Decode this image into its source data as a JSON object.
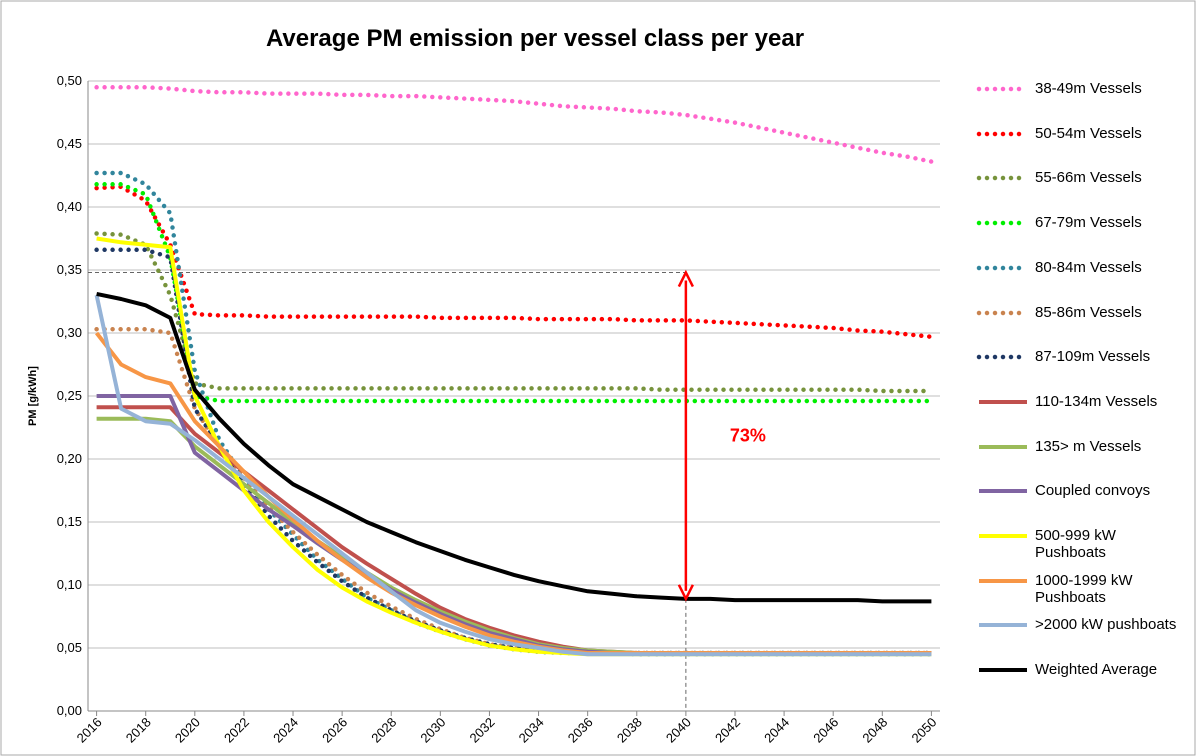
{
  "chart_data": {
    "type": "line",
    "title": "Average PM emission per vessel class per year",
    "y_label": "PM [g/kWh]",
    "xlim": [
      2015.65,
      2050.35
    ],
    "xticks": [
      2016,
      2018,
      2020,
      2022,
      2024,
      2026,
      2028,
      2030,
      2032,
      2034,
      2036,
      2038,
      2040,
      2042,
      2044,
      2046,
      2048,
      2050
    ],
    "ylim": [
      0,
      0.5
    ],
    "yticks": [
      {
        "value": 0,
        "label": "0,00"
      },
      {
        "value": 0.05,
        "label": "0,05"
      },
      {
        "value": 0.1,
        "label": "0,10"
      },
      {
        "value": 0.15,
        "label": "0,15"
      },
      {
        "value": 0.2,
        "label": "0,20"
      },
      {
        "value": 0.25,
        "label": "0,25"
      },
      {
        "value": 0.3,
        "label": "0,30"
      },
      {
        "value": 0.35,
        "label": "0,35"
      },
      {
        "value": 0.4,
        "label": "0,40"
      },
      {
        "value": 0.45,
        "label": "0,45"
      },
      {
        "value": 0.5,
        "label": "0,50"
      }
    ],
    "grid": true,
    "legend": "right",
    "x": [
      2016,
      2017,
      2018,
      2019,
      2020,
      2021,
      2022,
      2023,
      2024,
      2025,
      2026,
      2027,
      2028,
      2029,
      2030,
      2031,
      2032,
      2033,
      2034,
      2035,
      2036,
      2037,
      2038,
      2039,
      2040,
      2041,
      2042,
      2043,
      2044,
      2045,
      2046,
      2047,
      2048,
      2049,
      2050
    ],
    "series": [
      {
        "name": "38-49m Vessels",
        "color": "#ff66cc",
        "style": "dotted",
        "values": [
          0.495,
          0.495,
          0.495,
          0.494,
          0.492,
          0.491,
          0.491,
          0.49,
          0.49,
          0.49,
          0.489,
          0.489,
          0.488,
          0.488,
          0.487,
          0.486,
          0.485,
          0.484,
          0.482,
          0.48,
          0.479,
          0.478,
          0.476,
          0.475,
          0.473,
          0.47,
          0.467,
          0.463,
          0.459,
          0.455,
          0.451,
          0.447,
          0.443,
          0.44,
          0.436
        ]
      },
      {
        "name": "50-54m Vessels",
        "color": "#ff0000",
        "style": "dotted",
        "values": [
          0.415,
          0.416,
          0.405,
          0.37,
          0.315,
          0.314,
          0.314,
          0.313,
          0.313,
          0.313,
          0.313,
          0.313,
          0.313,
          0.313,
          0.312,
          0.312,
          0.312,
          0.312,
          0.311,
          0.311,
          0.311,
          0.311,
          0.31,
          0.31,
          0.31,
          0.309,
          0.308,
          0.307,
          0.306,
          0.305,
          0.304,
          0.302,
          0.301,
          0.299,
          0.297
        ]
      },
      {
        "name": "55-66m Vessels",
        "color": "#77933c",
        "style": "dotted",
        "values": [
          0.379,
          0.378,
          0.37,
          0.33,
          0.26,
          0.256,
          0.256,
          0.256,
          0.256,
          0.256,
          0.256,
          0.256,
          0.256,
          0.256,
          0.256,
          0.256,
          0.256,
          0.256,
          0.256,
          0.256,
          0.256,
          0.256,
          0.256,
          0.255,
          0.255,
          0.255,
          0.255,
          0.255,
          0.255,
          0.255,
          0.255,
          0.255,
          0.254,
          0.254,
          0.254
        ]
      },
      {
        "name": "67-79m Vessels",
        "color": "#00ee00",
        "style": "dotted",
        "values": [
          0.418,
          0.418,
          0.41,
          0.36,
          0.25,
          0.246,
          0.246,
          0.246,
          0.246,
          0.246,
          0.246,
          0.246,
          0.246,
          0.246,
          0.246,
          0.246,
          0.246,
          0.246,
          0.246,
          0.246,
          0.246,
          0.246,
          0.246,
          0.246,
          0.246,
          0.246,
          0.246,
          0.246,
          0.246,
          0.246,
          0.246,
          0.246,
          0.246,
          0.246,
          0.246
        ]
      },
      {
        "name": "80-84m Vessels",
        "color": "#31859c",
        "style": "dotted",
        "values": [
          0.427,
          0.427,
          0.418,
          0.395,
          0.27,
          0.215,
          0.185,
          0.16,
          0.14,
          0.12,
          0.105,
          0.09,
          0.08,
          0.07,
          0.063,
          0.057,
          0.052,
          0.049,
          0.047,
          0.046,
          0.046,
          0.046,
          0.045,
          0.045,
          0.045,
          0.045,
          0.045,
          0.045,
          0.045,
          0.045,
          0.045,
          0.045,
          0.045,
          0.045,
          0.045
        ]
      },
      {
        "name": "85-86m Vessels",
        "color": "#c9834f",
        "style": "dotted",
        "values": [
          0.303,
          0.303,
          0.303,
          0.3,
          0.24,
          0.21,
          0.185,
          0.162,
          0.142,
          0.124,
          0.108,
          0.094,
          0.083,
          0.073,
          0.065,
          0.058,
          0.053,
          0.05,
          0.048,
          0.047,
          0.046,
          0.046,
          0.046,
          0.046,
          0.046,
          0.046,
          0.046,
          0.046,
          0.046,
          0.046,
          0.046,
          0.046,
          0.046,
          0.046,
          0.046
        ]
      },
      {
        "name": "87-109m Vessels",
        "color": "#1f3864",
        "style": "dotted",
        "values": [
          0.366,
          0.366,
          0.366,
          0.36,
          0.24,
          0.21,
          0.18,
          0.155,
          0.135,
          0.118,
          0.103,
          0.09,
          0.08,
          0.071,
          0.064,
          0.058,
          0.053,
          0.05,
          0.048,
          0.047,
          0.046,
          0.046,
          0.046,
          0.046,
          0.046,
          0.046,
          0.046,
          0.046,
          0.046,
          0.046,
          0.046,
          0.046,
          0.046,
          0.046,
          0.046
        ]
      },
      {
        "name": "110-134m Vessels",
        "color": "#c0504d",
        "style": "solid",
        "values": [
          0.241,
          0.241,
          0.241,
          0.241,
          0.22,
          0.205,
          0.19,
          0.175,
          0.16,
          0.145,
          0.13,
          0.117,
          0.105,
          0.093,
          0.082,
          0.073,
          0.066,
          0.06,
          0.055,
          0.051,
          0.048,
          0.047,
          0.046,
          0.046,
          0.046,
          0.046,
          0.046,
          0.046,
          0.046,
          0.046,
          0.046,
          0.046,
          0.046,
          0.046,
          0.046
        ]
      },
      {
        "name": "135> m Vessels",
        "color": "#9bbb59",
        "style": "solid",
        "values": [
          0.232,
          0.232,
          0.232,
          0.23,
          0.21,
          0.195,
          0.18,
          0.165,
          0.15,
          0.135,
          0.122,
          0.11,
          0.098,
          0.088,
          0.079,
          0.071,
          0.064,
          0.058,
          0.053,
          0.05,
          0.048,
          0.047,
          0.046,
          0.046,
          0.046,
          0.046,
          0.046,
          0.046,
          0.046,
          0.046,
          0.046,
          0.046,
          0.046,
          0.046,
          0.046
        ]
      },
      {
        "name": "Coupled convoys",
        "color": "#8064a2",
        "style": "solid",
        "values": [
          0.25,
          0.25,
          0.25,
          0.25,
          0.205,
          0.19,
          0.175,
          0.16,
          0.147,
          0.133,
          0.12,
          0.108,
          0.096,
          0.086,
          0.077,
          0.069,
          0.062,
          0.057,
          0.052,
          0.049,
          0.047,
          0.046,
          0.046,
          0.046,
          0.046,
          0.046,
          0.046,
          0.046,
          0.046,
          0.046,
          0.046,
          0.046,
          0.046,
          0.046,
          0.046
        ]
      },
      {
        "name": "500-999 kW Pushboats",
        "color": "#ffff00",
        "style": "solid",
        "values": [
          0.375,
          0.372,
          0.37,
          0.368,
          0.25,
          0.21,
          0.175,
          0.15,
          0.13,
          0.112,
          0.098,
          0.087,
          0.078,
          0.07,
          0.063,
          0.057,
          0.052,
          0.049,
          0.047,
          0.046,
          0.045,
          0.045,
          0.045,
          0.045,
          0.045,
          0.045,
          0.045,
          0.045,
          0.045,
          0.045,
          0.045,
          0.045,
          0.045,
          0.045,
          0.045
        ]
      },
      {
        "name": "1000-1999 kW Pushboats",
        "color": "#f79646",
        "style": "solid",
        "values": [
          0.3,
          0.275,
          0.265,
          0.26,
          0.23,
          0.21,
          0.19,
          0.17,
          0.152,
          0.135,
          0.12,
          0.106,
          0.094,
          0.084,
          0.075,
          0.067,
          0.06,
          0.055,
          0.051,
          0.048,
          0.046,
          0.046,
          0.046,
          0.046,
          0.046,
          0.046,
          0.046,
          0.046,
          0.046,
          0.046,
          0.046,
          0.046,
          0.046,
          0.046,
          0.046
        ]
      },
      {
        "name": ">2000 kW pushboats",
        "color": "#95b3d7",
        "style": "solid",
        "values": [
          0.33,
          0.24,
          0.23,
          0.228,
          0.215,
          0.2,
          0.185,
          0.17,
          0.155,
          0.14,
          0.125,
          0.11,
          0.095,
          0.08,
          0.07,
          0.063,
          0.057,
          0.053,
          0.05,
          0.047,
          0.045,
          0.045,
          0.045,
          0.045,
          0.045,
          0.045,
          0.045,
          0.045,
          0.045,
          0.045,
          0.045,
          0.045,
          0.045,
          0.045,
          0.045
        ]
      },
      {
        "name": "Weighted Average",
        "color": "#000000",
        "style": "solid",
        "values": [
          0.331,
          0.327,
          0.322,
          0.312,
          0.255,
          0.232,
          0.212,
          0.195,
          0.18,
          0.17,
          0.16,
          0.15,
          0.142,
          0.134,
          0.127,
          0.12,
          0.114,
          0.108,
          0.103,
          0.099,
          0.095,
          0.093,
          0.091,
          0.09,
          0.089,
          0.089,
          0.088,
          0.088,
          0.088,
          0.088,
          0.088,
          0.088,
          0.087,
          0.087,
          0.087
        ]
      }
    ],
    "annotation": {
      "text": "73%",
      "color": "#ff0000",
      "x": 2040,
      "from": 0.348,
      "to": 0.089
    }
  }
}
